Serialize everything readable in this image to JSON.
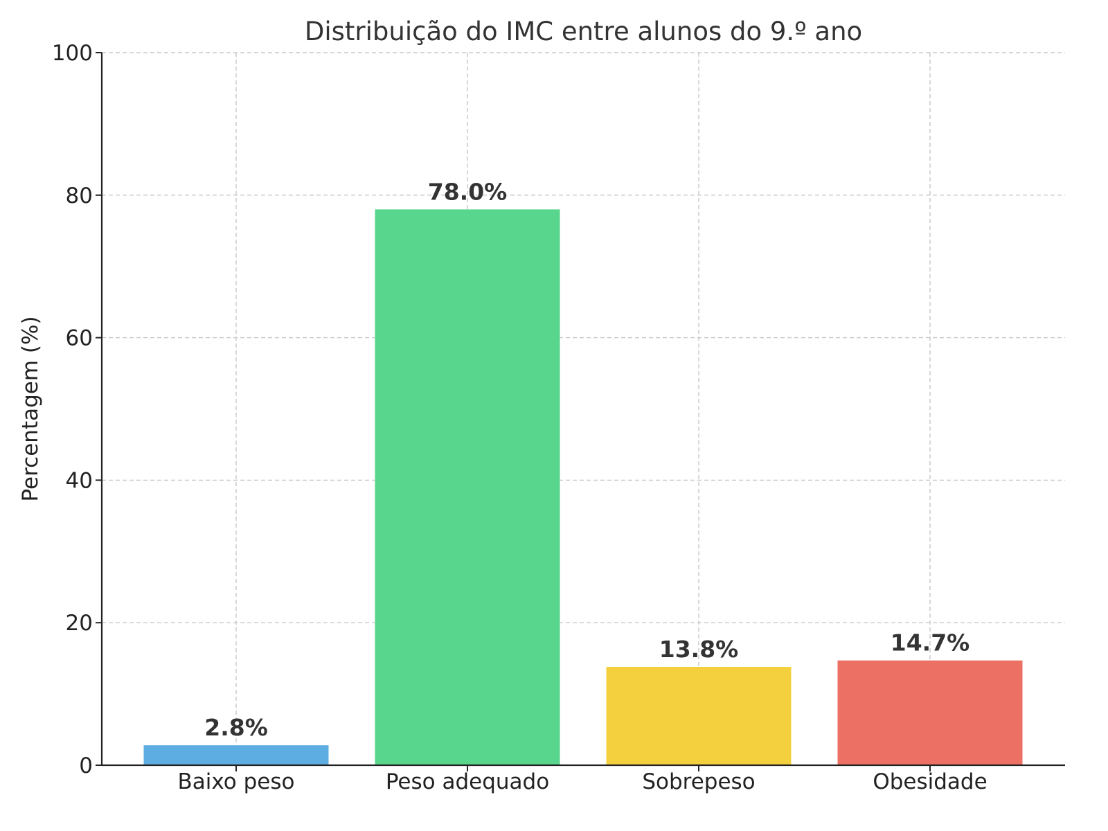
{
  "chart_data": {
    "type": "bar",
    "title": "Distribuição do IMC entre alunos do 9.º ano",
    "xlabel": "",
    "ylabel": "Percentagem (%)",
    "categories": [
      "Baixo peso",
      "Peso adequado",
      "Sobrepeso",
      "Obesidade"
    ],
    "values": [
      2.8,
      78.0,
      13.8,
      14.7
    ],
    "value_labels": [
      "2.8%",
      "78.0%",
      "13.8%",
      "14.7%"
    ],
    "colors": [
      "#5DADE2",
      "#58D68D",
      "#F4D03F",
      "#EC7063"
    ],
    "ylim": [
      0,
      100
    ],
    "yticks": [
      0,
      20,
      40,
      60,
      80,
      100
    ],
    "ytick_labels": [
      "0",
      "20",
      "40",
      "60",
      "80",
      "100"
    ],
    "grid": true,
    "legend": "none"
  }
}
